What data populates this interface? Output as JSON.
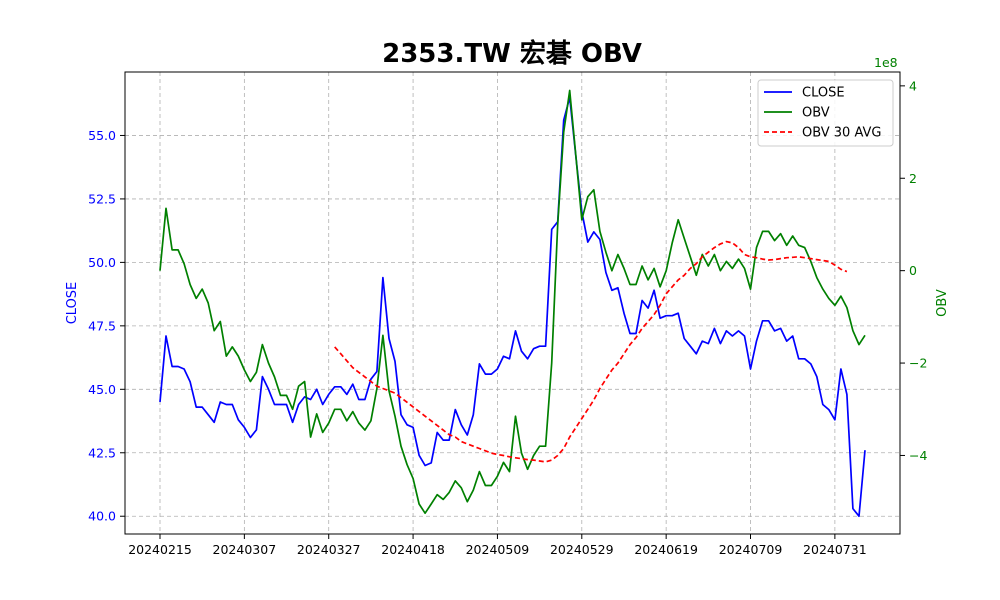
{
  "chart_data": {
    "type": "line",
    "title": "2353.TW 宏碁 OBV",
    "xlabel": "",
    "ylabel_left": "CLOSE",
    "ylabel_right": "OBV",
    "right_axis_multiplier": "1e8",
    "grid": true,
    "legend_position": "top-right",
    "x_tick_labels": [
      "20240215",
      "20240307",
      "20240327",
      "20240418",
      "20240509",
      "20240529",
      "20240619",
      "20240709",
      "20240731"
    ],
    "y_left": {
      "ylim": [
        39.3,
        57.5
      ],
      "ticks": [
        "40.0",
        "42.5",
        "45.0",
        "47.5",
        "50.0",
        "52.5",
        "55.0"
      ]
    },
    "y_right": {
      "ylim": [
        -5.7,
        4.3
      ],
      "ticks": [
        "−4",
        "−2",
        "0",
        "2",
        "4"
      ]
    },
    "colors": {
      "close": "#0000ff",
      "obv": "#008000",
      "obv_avg": "#ff0000",
      "grid": "#b0b0b0"
    },
    "series": [
      {
        "name": "CLOSE",
        "axis": "left",
        "style": "solid",
        "values": [
          44.5,
          47.1,
          45.9,
          45.9,
          45.8,
          45.3,
          44.3,
          44.3,
          44.0,
          43.7,
          44.5,
          44.4,
          44.4,
          43.8,
          43.5,
          43.1,
          43.4,
          45.5,
          45.0,
          44.4,
          44.4,
          44.4,
          43.7,
          44.4,
          44.7,
          44.6,
          45.0,
          44.4,
          44.8,
          45.1,
          45.1,
          44.8,
          45.2,
          44.6,
          44.6,
          45.4,
          45.7,
          49.4,
          47.0,
          46.1,
          44.0,
          43.6,
          43.5,
          42.4,
          42.0,
          42.1,
          43.3,
          43.0,
          43.0,
          44.2,
          43.6,
          43.2,
          44.0,
          46.0,
          45.6,
          45.6,
          45.8,
          46.3,
          46.2,
          47.3,
          46.5,
          46.2,
          46.6,
          46.7,
          46.7,
          51.3,
          51.6,
          55.6,
          56.5,
          54.2,
          52.0,
          50.8,
          51.2,
          50.9,
          49.6,
          48.9,
          49.0,
          48.0,
          47.2,
          47.2,
          48.5,
          48.2,
          48.9,
          47.8,
          47.9,
          47.9,
          48.0,
          47.0,
          46.7,
          46.4,
          46.9,
          46.8,
          47.4,
          46.8,
          47.3,
          47.1,
          47.3,
          47.1,
          45.8,
          46.9,
          47.7,
          47.7,
          47.3,
          47.4,
          46.9,
          47.1,
          46.2,
          46.2,
          46.0,
          45.5,
          44.4,
          44.2,
          43.8,
          45.8,
          44.8,
          40.3,
          40.0,
          42.6
        ]
      },
      {
        "name": "OBV",
        "axis": "right",
        "style": "solid",
        "values": [
          0.0,
          1.35,
          0.45,
          0.45,
          0.15,
          -0.3,
          -0.6,
          -0.4,
          -0.7,
          -1.3,
          -1.1,
          -1.85,
          -1.65,
          -1.85,
          -2.15,
          -2.4,
          -2.2,
          -1.6,
          -2.0,
          -2.3,
          -2.7,
          -2.7,
          -3.0,
          -2.5,
          -2.4,
          -3.6,
          -3.1,
          -3.5,
          -3.3,
          -3.0,
          -3.0,
          -3.25,
          -3.05,
          -3.3,
          -3.45,
          -3.25,
          -2.55,
          -1.4,
          -2.6,
          -3.15,
          -3.8,
          -4.2,
          -4.5,
          -5.05,
          -5.25,
          -5.05,
          -4.85,
          -4.95,
          -4.8,
          -4.55,
          -4.7,
          -5.0,
          -4.75,
          -4.35,
          -4.65,
          -4.65,
          -4.45,
          -4.15,
          -4.35,
          -3.15,
          -3.95,
          -4.3,
          -4.0,
          -3.8,
          -3.8,
          -2.0,
          1.0,
          3.0,
          3.9,
          2.5,
          1.1,
          1.6,
          1.75,
          0.85,
          0.4,
          0.0,
          0.35,
          0.05,
          -0.3,
          -0.3,
          0.1,
          -0.2,
          0.05,
          -0.35,
          0.0,
          0.6,
          1.1,
          0.7,
          0.3,
          -0.1,
          0.35,
          0.1,
          0.35,
          0.0,
          0.2,
          0.05,
          0.25,
          0.05,
          -0.4,
          0.5,
          0.85,
          0.85,
          0.65,
          0.8,
          0.55,
          0.75,
          0.55,
          0.5,
          0.2,
          -0.15,
          -0.4,
          -0.6,
          -0.75,
          -0.55,
          -0.8,
          -1.3,
          -1.6,
          -1.4
        ]
      },
      {
        "name": "OBV 30 AVG",
        "axis": "right",
        "style": "dashed",
        "start_index": 29,
        "values": [
          -1.65,
          -1.8,
          -1.95,
          -2.1,
          -2.2,
          -2.3,
          -2.4,
          -2.5,
          -2.55,
          -2.6,
          -2.65,
          -2.75,
          -2.85,
          -2.95,
          -3.05,
          -3.15,
          -3.25,
          -3.35,
          -3.45,
          -3.55,
          -3.6,
          -3.7,
          -3.75,
          -3.8,
          -3.85,
          -3.9,
          -3.95,
          -3.98,
          -4.0,
          -4.03,
          -4.05,
          -4.07,
          -4.09,
          -4.1,
          -4.12,
          -4.14,
          -4.1,
          -4.0,
          -3.85,
          -3.6,
          -3.4,
          -3.2,
          -3.0,
          -2.8,
          -2.55,
          -2.35,
          -2.15,
          -2.0,
          -1.8,
          -1.6,
          -1.45,
          -1.25,
          -1.1,
          -0.95,
          -0.75,
          -0.5,
          -0.35,
          -0.2,
          -0.1,
          0.05,
          0.15,
          0.3,
          0.4,
          0.5,
          0.58,
          0.63,
          0.6,
          0.5,
          0.35,
          0.3,
          0.28,
          0.25,
          0.23,
          0.24,
          0.26,
          0.28,
          0.29,
          0.3,
          0.28,
          0.26,
          0.24,
          0.22,
          0.2,
          0.12,
          0.03,
          -0.02
        ]
      }
    ]
  }
}
